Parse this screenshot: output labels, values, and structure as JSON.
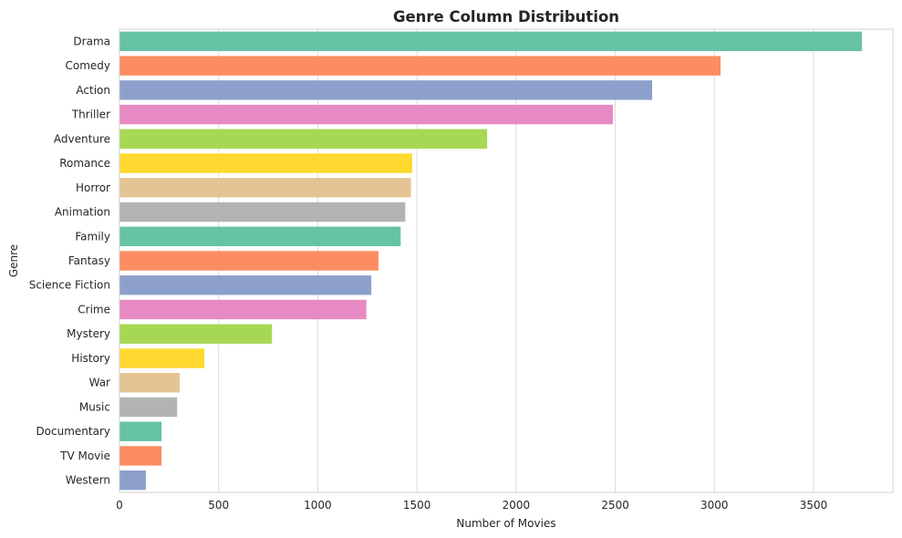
{
  "chart_data": {
    "type": "bar",
    "orientation": "horizontal",
    "title": "Genre Column Distribution",
    "xlabel": "Number of Movies",
    "ylabel": "Genre",
    "xlim": [
      0,
      3900
    ],
    "xticks": [
      0,
      500,
      1000,
      1500,
      2000,
      2500,
      3000,
      3500
    ],
    "grid": "vertical",
    "categories": [
      "Drama",
      "Comedy",
      "Action",
      "Thriller",
      "Adventure",
      "Romance",
      "Horror",
      "Animation",
      "Family",
      "Fantasy",
      "Science Fiction",
      "Crime",
      "Mystery",
      "History",
      "War",
      "Music",
      "Documentary",
      "TV Movie",
      "Western"
    ],
    "values": [
      3744,
      3031,
      2686,
      2488,
      1854,
      1476,
      1470,
      1441,
      1418,
      1306,
      1270,
      1245,
      769,
      428,
      304,
      291,
      212,
      212,
      133
    ],
    "colors": [
      "#66c2a5",
      "#fc8d62",
      "#8da0cb",
      "#e78ac3",
      "#a6d854",
      "#ffd92f",
      "#e5c494",
      "#b3b3b3",
      "#66c2a5",
      "#fc8d62",
      "#8da0cb",
      "#e78ac3",
      "#a6d854",
      "#ffd92f",
      "#e5c494",
      "#b3b3b3",
      "#66c2a5",
      "#fc8d62",
      "#8da0cb"
    ]
  }
}
